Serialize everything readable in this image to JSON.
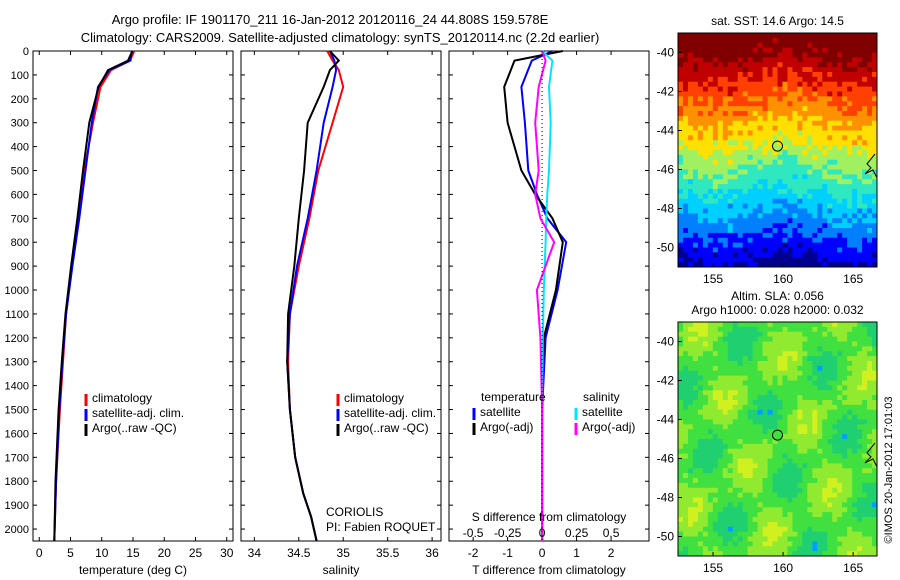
{
  "header": {
    "title_line1": "Argo profile: IF 1901170_211 16-Jan-2012 20120116_24 44.808S 159.578E",
    "title_line2": "Climatology: CARS2009. Satellite-adjusted climatology: synTS_20120114.nc (2.2d earlier)"
  },
  "credit": "©IMOS 20-Jan-2012 17:01:03",
  "colors": {
    "climatology": "#ff0000",
    "satellite": "#0000ff",
    "argo": "#000000",
    "sal_satellite": "#00e5ff",
    "sal_argo": "#ff00ff"
  },
  "chart_data": [
    {
      "id": "temperature",
      "type": "line",
      "xlabel": "temperature (deg C)",
      "ylabel": "",
      "xlim": [
        -1,
        31
      ],
      "ylim": [
        2050,
        0
      ],
      "xticks": [
        0,
        5,
        10,
        15,
        20,
        25,
        30
      ],
      "xtick_labels": [
        "0",
        "5",
        "10",
        "15",
        "20",
        "25",
        "30"
      ],
      "yticks": [
        0,
        100,
        200,
        300,
        400,
        500,
        600,
        700,
        800,
        900,
        1000,
        1100,
        1200,
        1300,
        1400,
        1500,
        1600,
        1700,
        1800,
        1900,
        2000
      ],
      "ytick_labels": [
        "0",
        "100",
        "200",
        "300",
        "400",
        "500",
        "600",
        "700",
        "800",
        "900",
        "1000",
        "1100",
        "1200",
        "1300",
        "1400",
        "1500",
        "1600",
        "1700",
        "1800",
        "1900",
        "2000"
      ],
      "legend": [
        "climatology",
        "satellite-adj. clim.",
        "Argo(..raw -QC)"
      ],
      "legend_position": "lower-center",
      "series": [
        {
          "name": "climatology",
          "color": "#ff0000",
          "x": [
            15.2,
            14.5,
            11.5,
            9.8,
            8.6,
            7.2,
            6.2,
            5.2,
            4.3,
            3.8,
            3.3,
            2.7,
            2.4
          ],
          "y": [
            0,
            40,
            80,
            150,
            300,
            500,
            700,
            900,
            1100,
            1300,
            1500,
            1800,
            2050
          ]
        },
        {
          "name": "satellite-adj. clim.",
          "color": "#0000ff",
          "x": [
            14.8,
            14.6,
            11.2,
            9.4,
            8.4,
            7.4,
            6.4,
            5.3,
            4.3,
            3.7,
            3.2,
            2.7,
            2.4
          ],
          "y": [
            0,
            40,
            80,
            150,
            300,
            500,
            700,
            900,
            1100,
            1300,
            1500,
            1800,
            2050
          ]
        },
        {
          "name": "Argo(..raw -QC)",
          "color": "#000000",
          "x": [
            14.9,
            14.2,
            11.0,
            9.5,
            8.0,
            7.0,
            6.1,
            5.1,
            4.2,
            3.6,
            3.1,
            2.6,
            2.4
          ],
          "y": [
            0,
            40,
            80,
            150,
            300,
            500,
            700,
            900,
            1100,
            1300,
            1500,
            1800,
            2050
          ]
        }
      ]
    },
    {
      "id": "salinity",
      "type": "line",
      "xlabel": "salinity",
      "ylabel": "",
      "xlim": [
        33.85,
        36.1
      ],
      "ylim": [
        2050,
        0
      ],
      "xticks": [
        34,
        34.5,
        35,
        35.5,
        36
      ],
      "xtick_labels": [
        "34",
        "34.5",
        "35",
        "35.5",
        "36"
      ],
      "legend": [
        "climatology",
        "satellite-adj. clim.",
        "Argo(..raw -QC)"
      ],
      "legend_position": "lower-right",
      "annotation": [
        "CORIOLIS",
        "PI: Fabien ROQUET"
      ],
      "series": [
        {
          "name": "climatology",
          "color": "#ff0000",
          "x": [
            34.82,
            34.88,
            34.95,
            35.0,
            34.88,
            34.72,
            34.62,
            34.5,
            34.4,
            34.38,
            34.4,
            34.46,
            34.55,
            34.64,
            34.7
          ],
          "y": [
            0,
            40,
            80,
            150,
            300,
            500,
            700,
            900,
            1100,
            1300,
            1500,
            1700,
            1850,
            1950,
            2050
          ]
        },
        {
          "name": "satellite-adj. clim.",
          "color": "#0000ff",
          "x": [
            34.85,
            34.9,
            34.92,
            34.88,
            34.78,
            34.7,
            34.6,
            34.48,
            34.4,
            34.37,
            34.4,
            34.46,
            34.55,
            34.64,
            34.7
          ],
          "y": [
            0,
            40,
            80,
            150,
            300,
            500,
            700,
            900,
            1100,
            1300,
            1500,
            1700,
            1850,
            1950,
            2050
          ]
        },
        {
          "name": "Argo(..raw -QC)",
          "color": "#000000",
          "x": [
            34.85,
            34.95,
            34.85,
            34.78,
            34.6,
            34.56,
            34.5,
            34.45,
            34.38,
            34.37,
            34.4,
            34.46,
            34.55,
            34.64,
            34.7
          ],
          "y": [
            0,
            40,
            80,
            150,
            300,
            500,
            700,
            900,
            1100,
            1300,
            1500,
            1700,
            1850,
            1950,
            2050
          ]
        }
      ]
    },
    {
      "id": "difference",
      "type": "line",
      "xlabel": "T difference from climatology",
      "xlabel_top": "S difference from climatology",
      "ylabel": "",
      "xlim": [
        -2.7,
        3.1
      ],
      "ylim": [
        2050,
        0
      ],
      "xticks": [
        -2,
        -1,
        0,
        1,
        2
      ],
      "xtick_labels": [
        "-2",
        "-1",
        "0",
        "1",
        "2"
      ],
      "sticks": [
        -0.5,
        -0.25,
        0,
        0.25,
        0.5
      ],
      "stick_labels": [
        "-0.5",
        "-0.25",
        "0",
        "0.25",
        "0.5"
      ],
      "legend_left_title": "temperature",
      "legend_left": [
        "satellite",
        "Argo(-adj)"
      ],
      "legend_right_title": "salinity",
      "legend_right": [
        "satellite",
        "Argo(-adj)"
      ],
      "series": [
        {
          "name": "T satellite",
          "color": "#0000ff",
          "x": [
            0.3,
            -0.3,
            -0.6,
            -0.5,
            -0.4,
            -0.15,
            0.15,
            0.7,
            0.45,
            0.1,
            0.0,
            0.0,
            0.0
          ],
          "y": [
            0,
            40,
            150,
            300,
            500,
            600,
            700,
            800,
            1000,
            1200,
            1500,
            1800,
            2050
          ]
        },
        {
          "name": "T Argo(-adj)",
          "color": "#000000",
          "x": [
            0.6,
            -0.8,
            -1.1,
            -1.0,
            -0.6,
            -0.2,
            0.3,
            0.6,
            0.4,
            0.05,
            0.0,
            0.0,
            0.0
          ],
          "y": [
            0,
            40,
            150,
            300,
            500,
            600,
            700,
            800,
            1000,
            1200,
            1500,
            1800,
            2050
          ]
        },
        {
          "name": "S satellite",
          "color": "#00e5ff",
          "x": [
            0.0,
            0.3,
            0.2,
            0.25,
            0.2,
            0.15,
            0.12,
            0.1,
            0.05,
            0.02,
            0.0,
            0.0,
            0.0
          ],
          "y": [
            0,
            40,
            150,
            300,
            500,
            600,
            700,
            800,
            1000,
            1200,
            1500,
            1800,
            2050
          ]
        },
        {
          "name": "S Argo(-adj)",
          "color": "#ff00ff",
          "x": [
            0.0,
            0.1,
            -0.1,
            -0.2,
            -0.1,
            -0.2,
            -0.05,
            0.35,
            -0.15,
            -0.05,
            0.0,
            0.0,
            0.0
          ],
          "y": [
            0,
            40,
            150,
            300,
            500,
            600,
            700,
            800,
            1000,
            1200,
            1500,
            1800,
            2050
          ]
        }
      ]
    },
    {
      "id": "sst_map",
      "type": "heatmap",
      "title": "sat. SST: 14.6  Argo: 14.5",
      "xlim": [
        152.5,
        166.7
      ],
      "ylim": [
        -51,
        -39
      ],
      "xticks": [
        155,
        160,
        165
      ],
      "xtick_labels": [
        "155",
        "160",
        "165"
      ],
      "yticks": [
        -40,
        -42,
        -44,
        -46,
        -48,
        -50
      ],
      "ytick_labels": [
        "-40",
        "-42",
        "-44",
        "-46",
        "-48",
        "-50"
      ],
      "marker": {
        "lon": 159.6,
        "lat": -44.8
      },
      "palette": [
        "#00008f",
        "#0000ff",
        "#0080ff",
        "#00d0ff",
        "#30e8c0",
        "#a0f060",
        "#ffe000",
        "#ff9000",
        "#ff4000",
        "#c00000",
        "#800000"
      ],
      "value_range": [
        8,
        19
      ]
    },
    {
      "id": "sla_map",
      "type": "heatmap",
      "title": "Altim. SLA: 0.056",
      "subtitle": "Argo h1000: 0.028 h2000: 0.032",
      "xlim": [
        152.5,
        166.7
      ],
      "ylim": [
        -51,
        -39
      ],
      "xticks": [
        155,
        160,
        165
      ],
      "xtick_labels": [
        "155",
        "160",
        "165"
      ],
      "yticks": [
        -40,
        -42,
        -44,
        -46,
        -48,
        -50
      ],
      "ytick_labels": [
        "-40",
        "-42",
        "-44",
        "-46",
        "-48",
        "-50"
      ],
      "marker": {
        "lon": 159.6,
        "lat": -44.8
      },
      "palette": [
        "#00a0ff",
        "#20d070",
        "#40e040",
        "#90ea30",
        "#d0f020",
        "#ffff00"
      ],
      "value_range": [
        -0.3,
        0.3
      ]
    }
  ]
}
